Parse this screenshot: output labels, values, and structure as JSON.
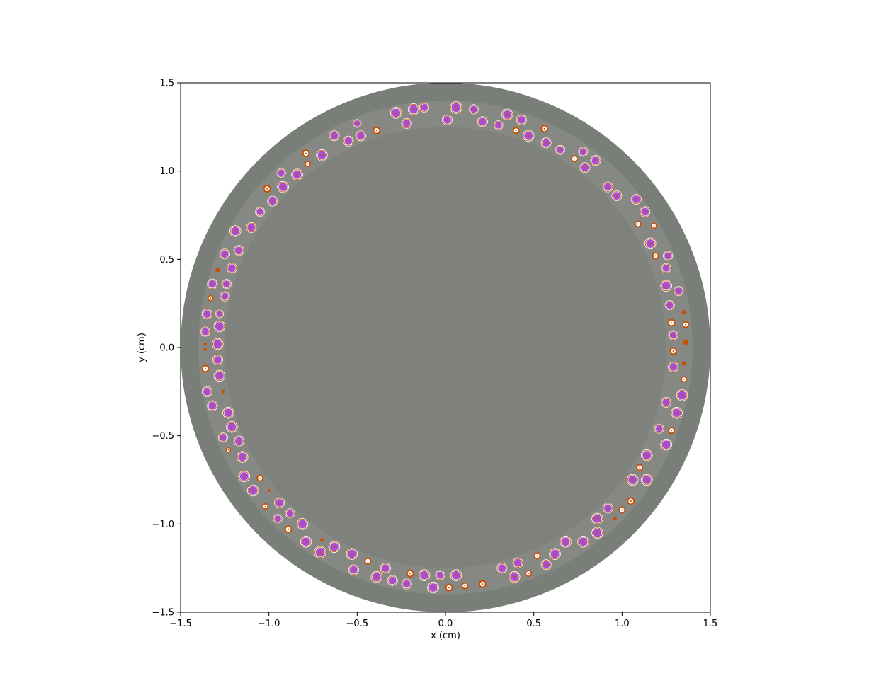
{
  "chart_data": {
    "type": "geometry-slice",
    "title": "",
    "xlabel": "x (cm)",
    "ylabel": "y (cm)",
    "xlim": [
      -1.5,
      1.5
    ],
    "ylim": [
      -1.5,
      1.5
    ],
    "xticks": [
      -1.5,
      -1.0,
      -0.5,
      0.0,
      0.5,
      1.0,
      1.5
    ],
    "yticks": [
      -1.5,
      -1.0,
      -0.5,
      0.0,
      0.5,
      1.0,
      1.5
    ],
    "xtick_labels": [
      "−1.5",
      "−1.0",
      "−0.5",
      "0.0",
      "0.5",
      "1.0",
      "1.5"
    ],
    "ytick_labels": [
      "−1.5",
      "−1.0",
      "−0.5",
      "0.0",
      "0.5",
      "1.0",
      "1.5"
    ],
    "grid": false,
    "colors": {
      "outer_region": "#7a7e78",
      "annulus_region": "#868983",
      "inner_region": "#7f827c",
      "kernel": "#a64fd0",
      "coating": "#c85000",
      "buffer": "#ffffff"
    },
    "regions": [
      {
        "name": "outer",
        "r": 1.5
      },
      {
        "name": "annulus",
        "r": 1.4
      },
      {
        "name": "inner",
        "r": 1.25
      }
    ],
    "particles": [
      {
        "x": 0.06,
        "y": 1.36,
        "r": 0.035,
        "k": "full"
      },
      {
        "x": -0.12,
        "y": 1.36,
        "r": 0.028,
        "k": "full"
      },
      {
        "x": -0.18,
        "y": 1.35,
        "r": 0.033,
        "k": "full"
      },
      {
        "x": -0.28,
        "y": 1.33,
        "r": 0.033,
        "k": "full"
      },
      {
        "x": 0.16,
        "y": 1.35,
        "r": 0.028,
        "k": "full"
      },
      {
        "x": 0.35,
        "y": 1.32,
        "r": 0.033,
        "k": "full"
      },
      {
        "x": 0.43,
        "y": 1.29,
        "r": 0.03,
        "k": "full"
      },
      {
        "x": 0.01,
        "y": 1.29,
        "r": 0.03,
        "k": "full"
      },
      {
        "x": 0.21,
        "y": 1.28,
        "r": 0.03,
        "k": "full"
      },
      {
        "x": -0.22,
        "y": 1.27,
        "r": 0.03,
        "k": "full"
      },
      {
        "x": -0.5,
        "y": 1.27,
        "r": 0.024,
        "k": "full"
      },
      {
        "x": 0.3,
        "y": 1.26,
        "r": 0.027,
        "k": "full"
      },
      {
        "x": 0.56,
        "y": 1.24,
        "r": 0.022,
        "k": "small"
      },
      {
        "x": -0.39,
        "y": 1.23,
        "r": 0.022,
        "k": "small"
      },
      {
        "x": 0.4,
        "y": 1.23,
        "r": 0.02,
        "k": "small"
      },
      {
        "x": -0.63,
        "y": 1.2,
        "r": 0.03,
        "k": "full"
      },
      {
        "x": -0.48,
        "y": 1.2,
        "r": 0.03,
        "k": "full"
      },
      {
        "x": 0.47,
        "y": 1.2,
        "r": 0.033,
        "k": "full"
      },
      {
        "x": -0.55,
        "y": 1.17,
        "r": 0.03,
        "k": "full"
      },
      {
        "x": 0.57,
        "y": 1.16,
        "r": 0.03,
        "k": "full"
      },
      {
        "x": 0.65,
        "y": 1.12,
        "r": 0.028,
        "k": "full"
      },
      {
        "x": 0.78,
        "y": 1.11,
        "r": 0.028,
        "k": "full"
      },
      {
        "x": -0.79,
        "y": 1.1,
        "r": 0.022,
        "k": "small"
      },
      {
        "x": -0.7,
        "y": 1.09,
        "r": 0.033,
        "k": "full"
      },
      {
        "x": 0.73,
        "y": 1.07,
        "r": 0.02,
        "k": "small"
      },
      {
        "x": 0.85,
        "y": 1.06,
        "r": 0.03,
        "k": "full"
      },
      {
        "x": -0.78,
        "y": 1.04,
        "r": 0.018,
        "k": "small"
      },
      {
        "x": 0.79,
        "y": 1.02,
        "r": 0.03,
        "k": "full"
      },
      {
        "x": -0.93,
        "y": 0.99,
        "r": 0.026,
        "k": "full"
      },
      {
        "x": -0.84,
        "y": 0.98,
        "r": 0.033,
        "k": "full"
      },
      {
        "x": -0.92,
        "y": 0.91,
        "r": 0.033,
        "k": "full"
      },
      {
        "x": 0.92,
        "y": 0.91,
        "r": 0.03,
        "k": "full"
      },
      {
        "x": -1.01,
        "y": 0.9,
        "r": 0.022,
        "k": "small"
      },
      {
        "x": 0.97,
        "y": 0.86,
        "r": 0.03,
        "k": "full"
      },
      {
        "x": 1.08,
        "y": 0.84,
        "r": 0.03,
        "k": "full"
      },
      {
        "x": -0.98,
        "y": 0.83,
        "r": 0.03,
        "k": "full"
      },
      {
        "x": -1.05,
        "y": 0.77,
        "r": 0.028,
        "k": "full"
      },
      {
        "x": 1.13,
        "y": 0.77,
        "r": 0.03,
        "k": "full"
      },
      {
        "x": 1.09,
        "y": 0.7,
        "r": 0.02,
        "k": "small"
      },
      {
        "x": 1.18,
        "y": 0.69,
        "r": 0.018,
        "k": "small"
      },
      {
        "x": -1.1,
        "y": 0.68,
        "r": 0.03,
        "k": "full"
      },
      {
        "x": -1.19,
        "y": 0.66,
        "r": 0.033,
        "k": "full"
      },
      {
        "x": 1.16,
        "y": 0.59,
        "r": 0.033,
        "k": "full"
      },
      {
        "x": -1.17,
        "y": 0.55,
        "r": 0.03,
        "k": "full"
      },
      {
        "x": -1.25,
        "y": 0.53,
        "r": 0.03,
        "k": "full"
      },
      {
        "x": 1.19,
        "y": 0.52,
        "r": 0.02,
        "k": "small"
      },
      {
        "x": 1.26,
        "y": 0.52,
        "r": 0.028,
        "k": "full"
      },
      {
        "x": -1.21,
        "y": 0.45,
        "r": 0.03,
        "k": "full"
      },
      {
        "x": 1.25,
        "y": 0.45,
        "r": 0.028,
        "k": "full"
      },
      {
        "x": -1.29,
        "y": 0.44,
        "r": 0.012,
        "k": "dot"
      },
      {
        "x": -1.32,
        "y": 0.36,
        "r": 0.03,
        "k": "full"
      },
      {
        "x": -1.24,
        "y": 0.36,
        "r": 0.028,
        "k": "full"
      },
      {
        "x": 1.25,
        "y": 0.35,
        "r": 0.033,
        "k": "full"
      },
      {
        "x": 1.32,
        "y": 0.32,
        "r": 0.028,
        "k": "full"
      },
      {
        "x": -1.25,
        "y": 0.29,
        "r": 0.028,
        "k": "full"
      },
      {
        "x": -1.33,
        "y": 0.28,
        "r": 0.018,
        "k": "small"
      },
      {
        "x": 1.27,
        "y": 0.24,
        "r": 0.028,
        "k": "full"
      },
      {
        "x": 1.35,
        "y": 0.2,
        "r": 0.012,
        "k": "dot"
      },
      {
        "x": -1.35,
        "y": 0.19,
        "r": 0.03,
        "k": "full"
      },
      {
        "x": -1.28,
        "y": 0.19,
        "r": 0.024,
        "k": "full"
      },
      {
        "x": 1.28,
        "y": 0.14,
        "r": 0.022,
        "k": "small"
      },
      {
        "x": 1.36,
        "y": 0.13,
        "r": 0.02,
        "k": "small"
      },
      {
        "x": -1.28,
        "y": 0.12,
        "r": 0.033,
        "k": "full"
      },
      {
        "x": -1.36,
        "y": 0.09,
        "r": 0.028,
        "k": "full"
      },
      {
        "x": 1.29,
        "y": 0.07,
        "r": 0.028,
        "k": "full"
      },
      {
        "x": 1.36,
        "y": 0.03,
        "r": 0.015,
        "k": "dot"
      },
      {
        "x": -1.29,
        "y": 0.02,
        "r": 0.033,
        "k": "full"
      },
      {
        "x": -1.36,
        "y": 0.02,
        "r": 0.008,
        "k": "dot"
      },
      {
        "x": -1.36,
        "y": -0.01,
        "r": 0.01,
        "k": "dot"
      },
      {
        "x": 1.29,
        "y": -0.02,
        "r": 0.022,
        "k": "small"
      },
      {
        "x": -1.29,
        "y": -0.07,
        "r": 0.03,
        "k": "full"
      },
      {
        "x": 1.35,
        "y": -0.09,
        "r": 0.012,
        "k": "dot"
      },
      {
        "x": -1.36,
        "y": -0.12,
        "r": 0.022,
        "k": "small"
      },
      {
        "x": 1.29,
        "y": -0.11,
        "r": 0.03,
        "k": "full"
      },
      {
        "x": -1.28,
        "y": -0.16,
        "r": 0.033,
        "k": "full"
      },
      {
        "x": 1.35,
        "y": -0.18,
        "r": 0.018,
        "k": "small"
      },
      {
        "x": -1.35,
        "y": -0.25,
        "r": 0.03,
        "k": "full"
      },
      {
        "x": -1.26,
        "y": -0.25,
        "r": 0.01,
        "k": "dot"
      },
      {
        "x": 1.34,
        "y": -0.27,
        "r": 0.033,
        "k": "full"
      },
      {
        "x": 1.25,
        "y": -0.31,
        "r": 0.03,
        "k": "full"
      },
      {
        "x": -1.32,
        "y": -0.33,
        "r": 0.03,
        "k": "full"
      },
      {
        "x": -1.23,
        "y": -0.37,
        "r": 0.033,
        "k": "full"
      },
      {
        "x": 1.31,
        "y": -0.37,
        "r": 0.033,
        "k": "full"
      },
      {
        "x": -1.21,
        "y": -0.45,
        "r": 0.033,
        "k": "full"
      },
      {
        "x": 1.21,
        "y": -0.46,
        "r": 0.028,
        "k": "full"
      },
      {
        "x": 1.28,
        "y": -0.47,
        "r": 0.02,
        "k": "small"
      },
      {
        "x": -1.26,
        "y": -0.51,
        "r": 0.028,
        "k": "full"
      },
      {
        "x": -1.17,
        "y": -0.53,
        "r": 0.03,
        "k": "full"
      },
      {
        "x": 1.25,
        "y": -0.55,
        "r": 0.033,
        "k": "full"
      },
      {
        "x": -1.23,
        "y": -0.58,
        "r": 0.015,
        "k": "small"
      },
      {
        "x": -1.15,
        "y": -0.62,
        "r": 0.033,
        "k": "full"
      },
      {
        "x": 1.14,
        "y": -0.61,
        "r": 0.033,
        "k": "full"
      },
      {
        "x": 1.1,
        "y": -0.68,
        "r": 0.02,
        "k": "small"
      },
      {
        "x": -1.14,
        "y": -0.73,
        "r": 0.033,
        "k": "full"
      },
      {
        "x": -1.05,
        "y": -0.74,
        "r": 0.02,
        "k": "small"
      },
      {
        "x": 1.06,
        "y": -0.75,
        "r": 0.033,
        "k": "full"
      },
      {
        "x": 1.14,
        "y": -0.75,
        "r": 0.033,
        "k": "full"
      },
      {
        "x": -1.09,
        "y": -0.81,
        "r": 0.033,
        "k": "full"
      },
      {
        "x": -1.0,
        "y": -0.81,
        "r": 0.008,
        "k": "dot"
      },
      {
        "x": 1.05,
        "y": -0.87,
        "r": 0.022,
        "k": "small"
      },
      {
        "x": -0.94,
        "y": -0.88,
        "r": 0.03,
        "k": "full"
      },
      {
        "x": -1.02,
        "y": -0.9,
        "r": 0.018,
        "k": "small"
      },
      {
        "x": 0.92,
        "y": -0.91,
        "r": 0.03,
        "k": "full"
      },
      {
        "x": 1.0,
        "y": -0.92,
        "r": 0.02,
        "k": "small"
      },
      {
        "x": -0.88,
        "y": -0.94,
        "r": 0.028,
        "k": "full"
      },
      {
        "x": -0.95,
        "y": -0.97,
        "r": 0.026,
        "k": "full"
      },
      {
        "x": 0.86,
        "y": -0.97,
        "r": 0.033,
        "k": "full"
      },
      {
        "x": 0.96,
        "y": -0.97,
        "r": 0.01,
        "k": "dot"
      },
      {
        "x": -0.81,
        "y": -1.0,
        "r": 0.033,
        "k": "full"
      },
      {
        "x": -0.89,
        "y": -1.03,
        "r": 0.022,
        "k": "small"
      },
      {
        "x": 0.86,
        "y": -1.05,
        "r": 0.033,
        "k": "full"
      },
      {
        "x": 0.68,
        "y": -1.1,
        "r": 0.033,
        "k": "full"
      },
      {
        "x": 0.78,
        "y": -1.1,
        "r": 0.033,
        "k": "full"
      },
      {
        "x": -0.79,
        "y": -1.1,
        "r": 0.033,
        "k": "full"
      },
      {
        "x": -0.7,
        "y": -1.09,
        "r": 0.01,
        "k": "dot"
      },
      {
        "x": -0.63,
        "y": -1.13,
        "r": 0.033,
        "k": "full"
      },
      {
        "x": -0.71,
        "y": -1.16,
        "r": 0.035,
        "k": "full"
      },
      {
        "x": 0.62,
        "y": -1.17,
        "r": 0.033,
        "k": "full"
      },
      {
        "x": -0.53,
        "y": -1.17,
        "r": 0.033,
        "k": "full"
      },
      {
        "x": 0.52,
        "y": -1.18,
        "r": 0.02,
        "k": "small"
      },
      {
        "x": -0.44,
        "y": -1.21,
        "r": 0.02,
        "k": "small"
      },
      {
        "x": 0.41,
        "y": -1.22,
        "r": 0.03,
        "k": "full"
      },
      {
        "x": 0.57,
        "y": -1.23,
        "r": 0.03,
        "k": "full"
      },
      {
        "x": 0.32,
        "y": -1.25,
        "r": 0.03,
        "k": "full"
      },
      {
        "x": -0.34,
        "y": -1.25,
        "r": 0.03,
        "k": "full"
      },
      {
        "x": -0.52,
        "y": -1.26,
        "r": 0.03,
        "k": "full"
      },
      {
        "x": 0.47,
        "y": -1.28,
        "r": 0.02,
        "k": "small"
      },
      {
        "x": -0.2,
        "y": -1.28,
        "r": 0.022,
        "k": "small"
      },
      {
        "x": -0.12,
        "y": -1.29,
        "r": 0.033,
        "k": "full"
      },
      {
        "x": -0.03,
        "y": -1.29,
        "r": 0.028,
        "k": "full"
      },
      {
        "x": 0.06,
        "y": -1.29,
        "r": 0.033,
        "k": "full"
      },
      {
        "x": 0.39,
        "y": -1.3,
        "r": 0.033,
        "k": "full"
      },
      {
        "x": -0.39,
        "y": -1.3,
        "r": 0.033,
        "k": "full"
      },
      {
        "x": -0.3,
        "y": -1.32,
        "r": 0.03,
        "k": "full"
      },
      {
        "x": -0.22,
        "y": -1.34,
        "r": 0.03,
        "k": "full"
      },
      {
        "x": 0.21,
        "y": -1.34,
        "r": 0.022,
        "k": "small"
      },
      {
        "x": 0.11,
        "y": -1.35,
        "r": 0.02,
        "k": "small"
      },
      {
        "x": 0.02,
        "y": -1.36,
        "r": 0.022,
        "k": "small"
      },
      {
        "x": -0.07,
        "y": -1.36,
        "r": 0.033,
        "k": "full"
      }
    ]
  }
}
